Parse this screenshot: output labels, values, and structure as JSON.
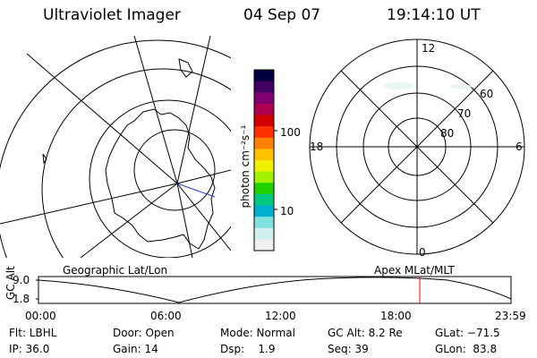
{
  "header": {
    "title": "Ultraviolet Imager",
    "date": "04 Sep 07",
    "time": "19:14:10 UT"
  },
  "colorbar": {
    "unit_label": "photon cm⁻²s⁻¹",
    "tick_labels": [
      "100",
      "10"
    ],
    "colors": [
      "#000040",
      "#400060",
      "#800070",
      "#b00050",
      "#d00000",
      "#ff3000",
      "#ff8000",
      "#ffc000",
      "#f0f000",
      "#a0f000",
      "#20d000",
      "#00c880",
      "#00b0d0",
      "#80e0e0",
      "#d0f0f0",
      "#f0f0f0"
    ]
  },
  "polar_plot": {
    "mlt_labels": {
      "top": "12",
      "bottom": "0",
      "left": "18",
      "right": "6"
    },
    "lat_labels": [
      "60",
      "70",
      "80"
    ]
  },
  "captions": {
    "left": "Geographic Lat/Lon",
    "right": "Apex MLat/MLT"
  },
  "timeline": {
    "ylabel": "GC Alt",
    "y_ticks": [
      "9.0",
      "1.8"
    ],
    "x_ticks": [
      "00:00",
      "06:00",
      "12:00",
      "18:00",
      "23:59"
    ],
    "marker_color": "#ff0000"
  },
  "info": {
    "row1": {
      "flt": "Flt: LBHL",
      "door": "Door: Open",
      "mode": "Mode: Normal",
      "gcalt": "GC Alt: 8.2 Re",
      "glat": "GLat: −71.5"
    },
    "row2": {
      "ip": "IP: 36.0",
      "gain": "Gain: 14",
      "dsp": "Dsp:    1.9",
      "seq": "Seq: 39",
      "glon": "GLon:  83.8"
    }
  }
}
